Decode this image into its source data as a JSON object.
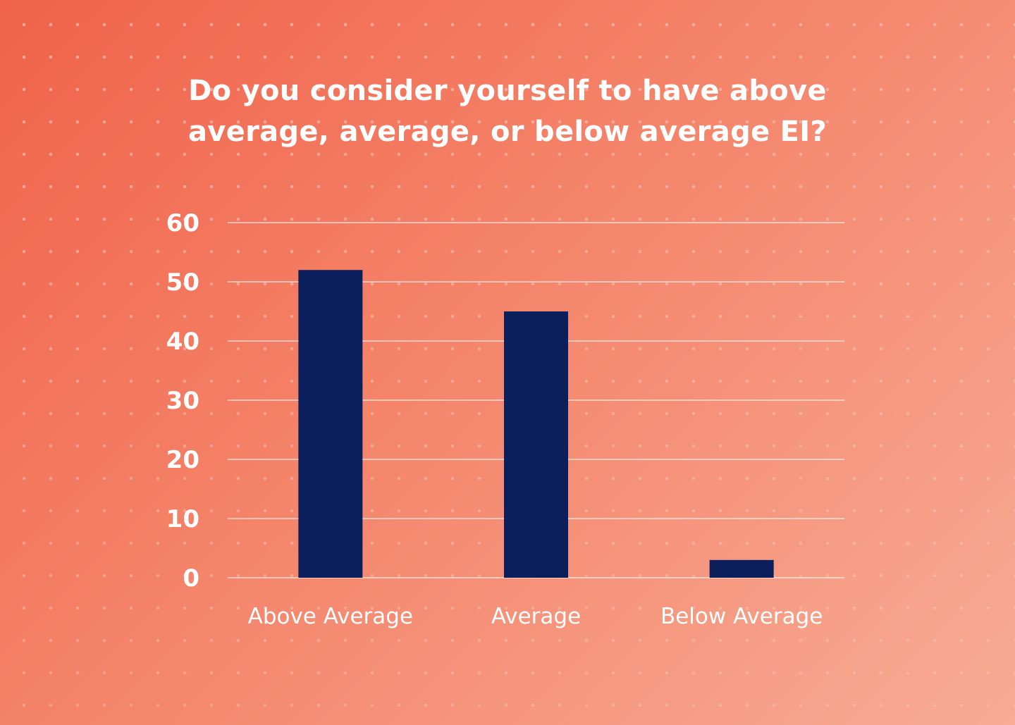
{
  "chart_data": {
    "type": "bar",
    "title": "Do you consider yourself to have above average, average, or below average EI?",
    "categories": [
      "Above Average",
      "Average",
      "Below Average"
    ],
    "values": [
      52,
      45,
      3
    ],
    "ylim": [
      0,
      60
    ],
    "yticks": [
      0,
      10,
      20,
      30,
      40,
      50,
      60
    ],
    "xlabel": "",
    "ylabel": "",
    "grid": true,
    "legend": "none",
    "bar_color": "#0b1f5c"
  }
}
